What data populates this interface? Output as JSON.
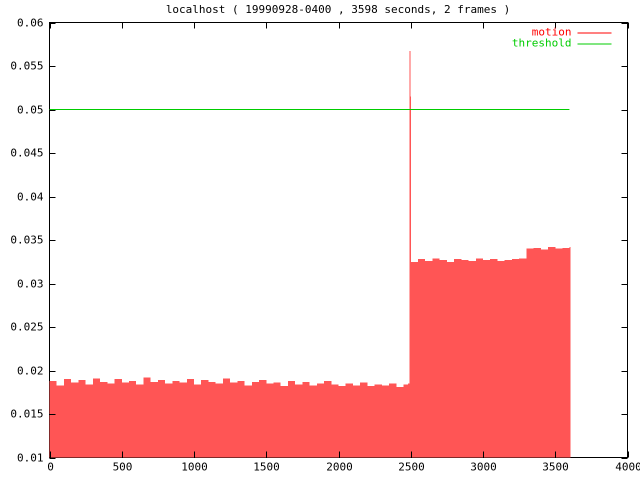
{
  "chart_data": {
    "type": "impulses",
    "title": "localhost ( 19990928-0400 , 3598 seconds, 2 frames )",
    "xlim": [
      0,
      4000
    ],
    "xticks": [
      0,
      500,
      1000,
      1500,
      2000,
      2500,
      3000,
      3500,
      4000
    ],
    "ylim": [
      0.01,
      0.06
    ],
    "yticks": [
      0.01,
      0.015,
      0.02,
      0.025,
      0.03,
      0.035,
      0.04,
      0.045,
      0.05,
      0.055,
      0.06
    ],
    "grid": false,
    "legend": "top-right",
    "series": [
      {
        "name": "motion",
        "color": "#ff0000",
        "fill": "#ff5555",
        "x": [
          0,
          50,
          100,
          150,
          200,
          250,
          300,
          350,
          400,
          450,
          500,
          550,
          600,
          650,
          700,
          750,
          800,
          850,
          900,
          950,
          1000,
          1050,
          1100,
          1150,
          1200,
          1250,
          1300,
          1350,
          1400,
          1450,
          1500,
          1550,
          1600,
          1650,
          1700,
          1750,
          1800,
          1850,
          1900,
          1950,
          2000,
          2050,
          2100,
          2150,
          2200,
          2250,
          2300,
          2350,
          2400,
          2450,
          2480,
          2490,
          2495,
          2500,
          2550,
          2600,
          2650,
          2700,
          2750,
          2800,
          2850,
          2900,
          2950,
          3000,
          3050,
          3100,
          3150,
          3200,
          3250,
          3300,
          3350,
          3400,
          3450,
          3500,
          3550,
          3598
        ],
        "values": [
          0.0188,
          0.0183,
          0.019,
          0.0186,
          0.0189,
          0.0184,
          0.0191,
          0.0187,
          0.0185,
          0.019,
          0.0186,
          0.0188,
          0.0184,
          0.0192,
          0.0187,
          0.0189,
          0.0185,
          0.0188,
          0.0186,
          0.019,
          0.0184,
          0.0189,
          0.0187,
          0.0185,
          0.0191,
          0.0186,
          0.0188,
          0.0183,
          0.0187,
          0.0189,
          0.0185,
          0.0186,
          0.0182,
          0.0188,
          0.0184,
          0.0187,
          0.0183,
          0.0185,
          0.0188,
          0.0184,
          0.0182,
          0.0185,
          0.0183,
          0.0186,
          0.0182,
          0.0184,
          0.0183,
          0.0185,
          0.0181,
          0.0184,
          0.0185,
          0.0567,
          0.0515,
          0.0325,
          0.0328,
          0.0326,
          0.0329,
          0.0327,
          0.0325,
          0.0328,
          0.0327,
          0.0326,
          0.0329,
          0.0327,
          0.0328,
          0.0326,
          0.0327,
          0.0328,
          0.0329,
          0.034,
          0.0341,
          0.0339,
          0.0342,
          0.034,
          0.0341,
          0.0342
        ]
      },
      {
        "name": "threshold",
        "color": "#00cc00",
        "x": [
          0,
          3598
        ],
        "values": [
          0.05,
          0.05
        ]
      }
    ]
  }
}
